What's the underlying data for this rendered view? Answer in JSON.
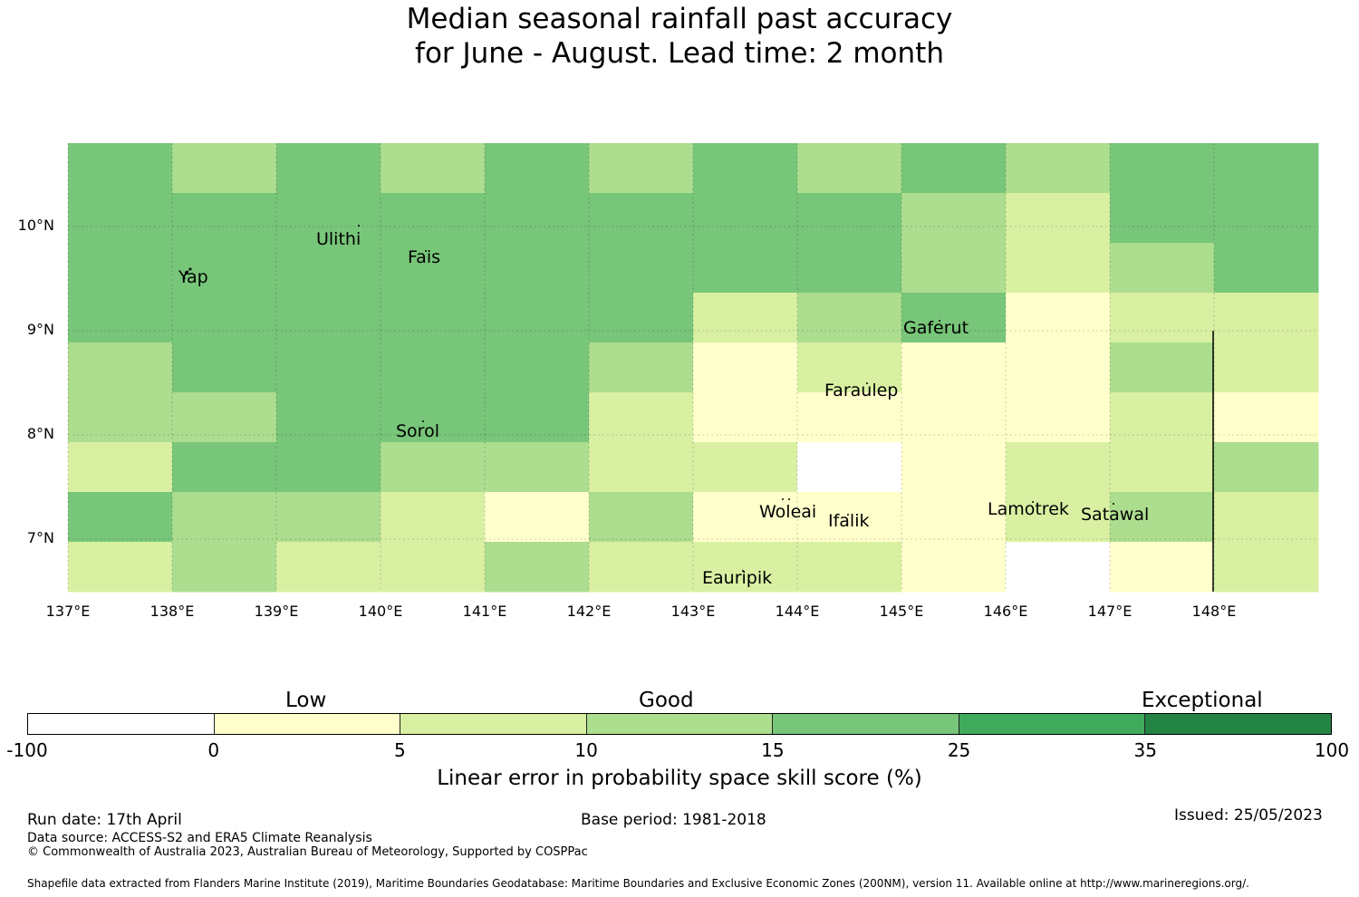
{
  "title": {
    "line1": "Median seasonal rainfall past accuracy",
    "line2": "for June - August. Lead time: 2 month"
  },
  "map": {
    "lon_ticks": [
      "137°E",
      "138°E",
      "139°E",
      "140°E",
      "141°E",
      "142°E",
      "143°E",
      "144°E",
      "145°E",
      "146°E",
      "147°E",
      "148°E"
    ],
    "lat_ticks": [
      "10°N",
      "9°N",
      "8°N",
      "7°N"
    ],
    "places": [
      "Yap",
      "Ulithi",
      "Fais",
      "Gaferut",
      "Faraulep",
      "Sorol",
      "Woleai",
      "Ifalik",
      "Lamotrek",
      "Satawal",
      "Eauripik"
    ],
    "grid_colors": [
      "#ffffff",
      "#ffffcc",
      "#d9f0a3",
      "#addd8e",
      "#78c679",
      "#41ab5d",
      "#238443"
    ],
    "grid_rows": [
      [
        4,
        3,
        4,
        3,
        4,
        3,
        4,
        3,
        4,
        3,
        4,
        4
      ],
      [
        4,
        4,
        4,
        4,
        4,
        4,
        4,
        4,
        3,
        2,
        4,
        4
      ],
      [
        4,
        4,
        4,
        4,
        4,
        4,
        4,
        4,
        3,
        2,
        3,
        4
      ],
      [
        4,
        4,
        4,
        4,
        4,
        4,
        2,
        3,
        4,
        1,
        2,
        2
      ],
      [
        3,
        4,
        4,
        4,
        4,
        3,
        1,
        2,
        1,
        1,
        3,
        2
      ],
      [
        3,
        3,
        4,
        4,
        4,
        2,
        1,
        1,
        1,
        1,
        2,
        1
      ],
      [
        2,
        4,
        4,
        3,
        3,
        2,
        2,
        0,
        1,
        2,
        2,
        3
      ],
      [
        4,
        3,
        3,
        2,
        1,
        3,
        1,
        1,
        1,
        2,
        3,
        2
      ],
      [
        2,
        3,
        2,
        2,
        3,
        2,
        2,
        2,
        1,
        0,
        1,
        2
      ]
    ]
  },
  "colorbar": {
    "colors": [
      "#ffffff",
      "#ffffcc",
      "#d9f0a3",
      "#addd8e",
      "#78c679",
      "#41ab5d",
      "#238443"
    ],
    "ticks": [
      "-100",
      "0",
      "5",
      "10",
      "15",
      "25",
      "35",
      "100"
    ],
    "categories": [
      "Low",
      "Good",
      "Exceptional"
    ],
    "label": "Linear error in probability space skill score (%)"
  },
  "footer": {
    "run_date": "Run date: 17th April",
    "base_period": "Base period: 1981-2018",
    "issued": "Issued: 25/05/2023",
    "data_source": "Data source: ACCESS-S2 and ERA5 Climate Reanalysis",
    "copyright": "© Commonwealth of Australia 2023, Australian Bureau of Meteorology, Supported by COSPPac",
    "shapefile": "Shapefile data extracted from Flanders Marine Institute (2019), Maritime Boundaries Geodatabase: Maritime Boundaries and Exclusive Economic Zones (200NM), version 11. Available online at http://www.marineregions.org/."
  }
}
